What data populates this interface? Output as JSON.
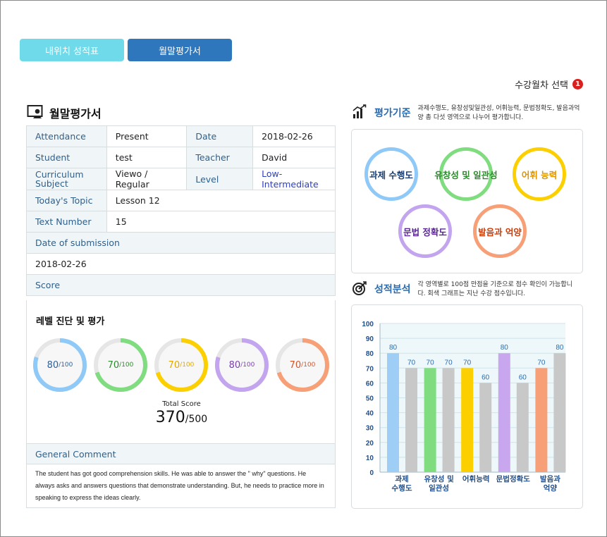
{
  "tabs": [
    {
      "label": "내위치 성적표"
    },
    {
      "label": "월말평가서"
    }
  ],
  "session_select": {
    "label": "수강월차 선택",
    "badge": "1"
  },
  "report": {
    "title": "월말평가서",
    "rows": {
      "attendance_label": "Attendance",
      "attendance_value": "Present",
      "date_label": "Date",
      "date_value": "2018-02-26",
      "student_label": "Student",
      "student_value": "test",
      "teacher_label": "Teacher",
      "teacher_value": "David",
      "curriculum_label": "Curriculum Subject",
      "curriculum_value": "Viewo / Regular",
      "level_label": "Level",
      "level_value": "Low-Intermediate",
      "topic_label": "Today's Topic",
      "topic_value": "Lesson 12",
      "text_number_label": "Text Number",
      "text_number_value": "15",
      "submission_label": "Date of submission",
      "submission_value": "2018-02-26",
      "score_label": "Score"
    },
    "score_heading": "레벨 진단 및 평가",
    "scores": [
      {
        "value": "80",
        "max": "/100",
        "color": "#8ec9f7"
      },
      {
        "value": "70",
        "max": "/100",
        "color": "#7fdc7f"
      },
      {
        "value": "70",
        "max": "/100",
        "color": "#fcd000"
      },
      {
        "value": "80",
        "max": "/100",
        "color": "#c2a4ef"
      },
      {
        "value": "70",
        "max": "/100",
        "color": "#f7a078"
      }
    ],
    "score_text_colors": [
      "#2d5f9a",
      "#2e8a2e",
      "#e0a800",
      "#7a3fb0",
      "#d2552a"
    ],
    "total_label": "Total Score",
    "total_value": "370",
    "total_max": "/500",
    "comment_label": "General Comment",
    "comment_text": "The student has got good comprehension skills. He was able to answer the \" why\" questions. He always asks and answers questions that demonstrate understanding. But, he needs to practice more in speaking to express the ideas clearly."
  },
  "criteria": {
    "title": "평가기준",
    "description": "과제수행도, 유창성및일관성, 어휘능력, 문법정확도, 발음과억양 총 다섯 영역으로 나누어 평가합니다.",
    "items": [
      {
        "label": "과제 수행도",
        "color": "#8ec9f7",
        "text_color": "#1a3d6e"
      },
      {
        "label": "유창성 및 일관성",
        "color": "#7fdc7f",
        "text_color": "#2e8a2e"
      },
      {
        "label": "어휘 능력",
        "color": "#fcd000",
        "text_color": "#e09400"
      },
      {
        "label": "문법 정확도",
        "color": "#c2a4ef",
        "text_color": "#5a2a90"
      },
      {
        "label": "발음과 억양",
        "color": "#f7a078",
        "text_color": "#c9400f"
      }
    ]
  },
  "analysis": {
    "title": "성적분석",
    "description": "각 영역별로 100점 만점을 기준으로 점수 확인이 가능합니다. 회색 그래프는 지난 수강 점수입니다."
  },
  "chart_data": {
    "type": "bar",
    "categories": [
      "과제\n수행도",
      "유창성 및\n일관성",
      "어휘능력",
      "문법정확도",
      "발음과\n억양"
    ],
    "series": [
      {
        "values": [
          80,
          70,
          70,
          80,
          70
        ],
        "colors": [
          "#9ecdf5",
          "#7fdc7f",
          "#fcd000",
          "#c8a7ef",
          "#f7a078"
        ]
      },
      {
        "values": [
          70,
          70,
          60,
          60,
          80
        ],
        "color": "#c8c8c8"
      }
    ],
    "ylim": [
      0,
      100
    ],
    "yticks": [
      0,
      10,
      20,
      30,
      40,
      50,
      60,
      70,
      80,
      90,
      100
    ],
    "grid": true,
    "label_color": "#2b6cb0"
  }
}
